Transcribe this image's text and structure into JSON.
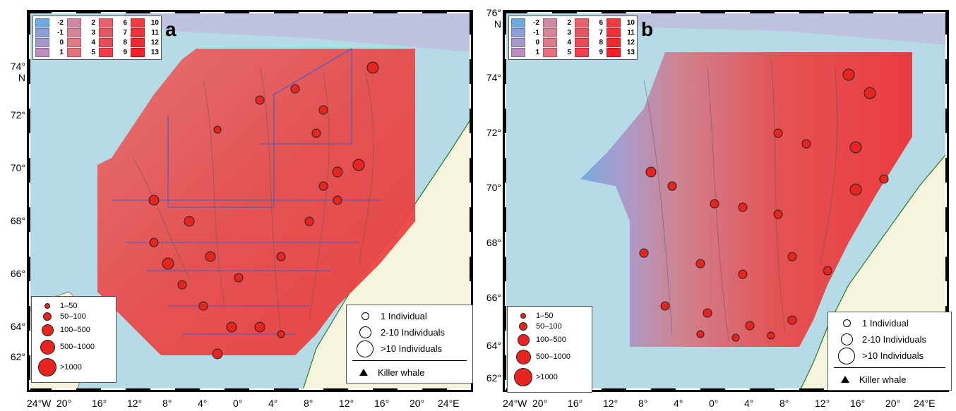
{
  "panels": [
    {
      "letter": "a",
      "temperature_legend": [
        {
          "label": "-2",
          "color": "#6fa8dc"
        },
        {
          "label": "-1",
          "color": "#8e9ed8"
        },
        {
          "label": "0",
          "color": "#a798cc"
        },
        {
          "label": "1",
          "color": "#bc8dbe"
        },
        {
          "label": "2",
          "color": "#cf87a8"
        },
        {
          "label": "3",
          "color": "#d98598"
        },
        {
          "label": "4",
          "color": "#e07a86"
        },
        {
          "label": "5",
          "color": "#e57079"
        },
        {
          "label": "6",
          "color": "#e8606a"
        },
        {
          "label": "7",
          "color": "#ea5660"
        },
        {
          "label": "8",
          "color": "#ec4a55"
        },
        {
          "label": "9",
          "color": "#ee404a"
        },
        {
          "label": "10",
          "color": "#ee3a40"
        },
        {
          "label": "11",
          "color": "#ef3238"
        },
        {
          "label": "12",
          "color": "#f02a30"
        },
        {
          "label": "13",
          "color": "#f22026"
        }
      ],
      "size_legend": [
        "1–50",
        "50–100",
        "100–500",
        "500–1000",
        ">1000"
      ],
      "individual_legend": [
        "1 Individual",
        "2-10 Individuals",
        ">10 Individuals"
      ],
      "killer_whale_label": "Killer whale",
      "lat_labels": [
        "74°",
        "N",
        "72°",
        "70°",
        "68°",
        "66°",
        "64°",
        "62°"
      ],
      "lon_labels": [
        "24°W",
        "20°",
        "16°",
        "12°",
        "8°",
        "4°",
        "0°",
        "4°",
        "8°",
        "12°",
        "16°",
        "20°",
        "24°E"
      ]
    },
    {
      "letter": "b",
      "temperature_legend": [
        {
          "label": "-2",
          "color": "#6fa8dc"
        },
        {
          "label": "-1",
          "color": "#8e9ed8"
        },
        {
          "label": "0",
          "color": "#a798cc"
        },
        {
          "label": "1",
          "color": "#bc8dbe"
        },
        {
          "label": "2",
          "color": "#cf87a8"
        },
        {
          "label": "3",
          "color": "#d98598"
        },
        {
          "label": "4",
          "color": "#e07a86"
        },
        {
          "label": "5",
          "color": "#e57079"
        },
        {
          "label": "6",
          "color": "#e8606a"
        },
        {
          "label": "7",
          "color": "#ea5660"
        },
        {
          "label": "8",
          "color": "#ec4a55"
        },
        {
          "label": "9",
          "color": "#ee404a"
        },
        {
          "label": "10",
          "color": "#ee3a40"
        },
        {
          "label": "11",
          "color": "#ef3238"
        },
        {
          "label": "12",
          "color": "#f02a30"
        },
        {
          "label": "13",
          "color": "#f22026"
        }
      ],
      "size_legend": [
        "1–50",
        "50–100",
        "100–500",
        "500–1000",
        ">1000"
      ],
      "individual_legend": [
        "1 Individual",
        "2-10 Individuals",
        ">10 Individuals"
      ],
      "killer_whale_label": "Killer whale",
      "lat_labels": [
        "76°",
        "N",
        "74°",
        "72°",
        "70°",
        "68°",
        "66°",
        "64°",
        "62°"
      ],
      "lon_labels": [
        "24°W",
        "20°",
        "16°",
        "12°",
        "8°",
        "4°",
        "0°",
        "4°",
        "8°",
        "12°",
        "16°",
        "20°",
        "24°E"
      ]
    }
  ],
  "colors": {
    "sea": "#b5dbe6",
    "land": "#f6f4dc",
    "field_warm": "#e84b4b",
    "marker_fill": "#e7241f"
  }
}
